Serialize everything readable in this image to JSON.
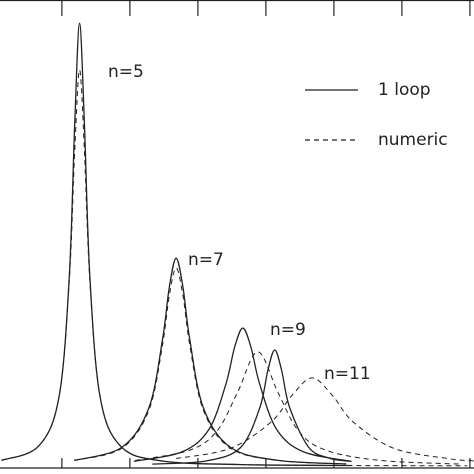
{
  "chart_data": {
    "type": "line",
    "xlim": [
      -0.91,
      6.06
    ],
    "ylim": [
      0,
      1
    ],
    "xticks": [
      0,
      1,
      2,
      3,
      4,
      5,
      6
    ],
    "color": "#222",
    "styles": [
      {
        "label": "1 loop",
        "dash": "none"
      },
      {
        "label": "numeric",
        "dash": "5,4"
      }
    ],
    "groups": [
      {
        "label": "n=5",
        "curves": [
          {
            "x": [
              -0.89,
              -0.34,
              -0.04,
              0.11,
              0.19,
              0.26,
              0.33,
              0.41,
              0.56,
              0.86,
              1.46,
              2.66,
              4.26
            ],
            "values": [
              0.012,
              0.043,
              0.15,
              0.41,
              0.74,
              0.95,
              0.74,
              0.41,
              0.15,
              0.043,
              0.011,
              0.003,
              0.001
            ]
          },
          {
            "x": [
              -0.89,
              -0.34,
              -0.04,
              0.11,
              0.19,
              0.26,
              0.33,
              0.41,
              0.56,
              0.86,
              1.46,
              2.66,
              4.26,
              5.96
            ],
            "values": [
              0.012,
              0.043,
              0.15,
              0.4,
              0.68,
              0.85,
              0.68,
              0.4,
              0.15,
              0.043,
              0.011,
              0.003,
              0.001,
              0.0005
            ]
          }
        ]
      },
      {
        "label": "n=7",
        "curves": [
          {
            "x": [
              0.18,
              0.88,
              1.28,
              1.48,
              1.58,
              1.68,
              1.78,
              1.88,
              2.08,
              2.48,
              3.18,
              4.18
            ],
            "values": [
              0.012,
              0.04,
              0.125,
              0.272,
              0.384,
              0.446,
              0.384,
              0.272,
              0.125,
              0.04,
              0.012,
              0.0044
            ]
          },
          {
            "x": [
              0.18,
              0.88,
              1.28,
              1.48,
              1.58,
              1.68,
              1.78,
              1.88,
              2.08,
              2.48,
              3.18,
              4.18
            ],
            "values": [
              0.012,
              0.038,
              0.12,
              0.26,
              0.366,
              0.425,
              0.366,
              0.26,
              0.12,
              0.038,
              0.012,
              0.004
            ]
          }
        ]
      },
      {
        "label": "n=9",
        "curves": [
          {
            "x": [
              1.06,
              1.76,
              2.16,
              2.41,
              2.54,
              2.66,
              2.78,
              2.91,
              3.16,
              3.56,
              4.26
            ],
            "values": [
              0.01,
              0.03,
              0.078,
              0.175,
              0.255,
              0.296,
              0.255,
              0.175,
              0.078,
              0.03,
              0.01
            ]
          },
          {
            "x": [
              1.08,
              1.88,
              2.28,
              2.58,
              2.88,
              3.18,
              3.48,
              3.88,
              4.68,
              5.88
            ],
            "values": [
              0.012,
              0.034,
              0.075,
              0.157,
              0.245,
              0.157,
              0.075,
              0.034,
              0.012,
              0.004
            ]
          }
        ]
      },
      {
        "label": "n=11",
        "curves": [
          {
            "x": [
              1.33,
              2.13,
              2.63,
              2.91,
              3.03,
              3.13,
              3.23,
              3.35,
              3.63,
              3.93,
              4.23
            ],
            "values": [
              0.004,
              0.011,
              0.04,
              0.125,
              0.206,
              0.249,
              0.206,
              0.125,
              0.04,
              0.017,
              0.01
            ]
          },
          {
            "x": [
              1.68,
              2.48,
              3.08,
              3.38,
              3.68,
              3.98,
              4.28,
              4.88,
              5.68,
              6.06
            ],
            "values": [
              0.016,
              0.038,
              0.095,
              0.151,
              0.189,
              0.151,
              0.095,
              0.038,
              0.016,
              0.011
            ]
          }
        ]
      }
    ]
  }
}
